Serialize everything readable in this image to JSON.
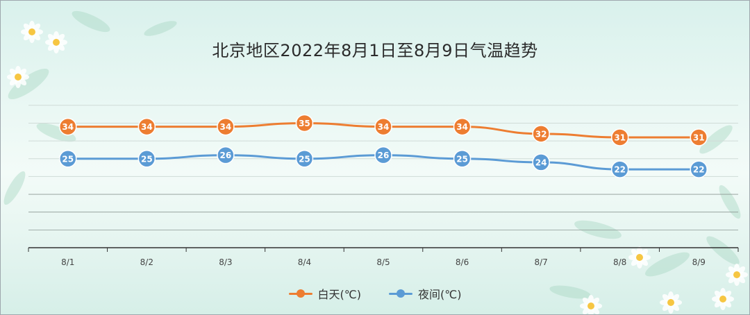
{
  "title": "北京地区2022年8月1日至8月9日气温趋势",
  "colors": {
    "day": "#ed7d31",
    "night": "#5b9bd5"
  },
  "chart_data": {
    "type": "line",
    "title": "北京地区2022年8月1日至8月9日气温趋势",
    "categories": [
      "8/1",
      "8/2",
      "8/3",
      "8/4",
      "8/5",
      "8/6",
      "8/7",
      "8/8",
      "8/9"
    ],
    "series": [
      {
        "name": "白天(℃)",
        "values": [
          34,
          34,
          34,
          35,
          34,
          34,
          32,
          31,
          31
        ]
      },
      {
        "name": "夜间(℃)",
        "values": [
          25,
          25,
          26,
          25,
          26,
          25,
          24,
          22,
          22
        ]
      }
    ],
    "ylim": [
      0,
      40
    ],
    "grid": true,
    "legend_position": "bottom"
  }
}
